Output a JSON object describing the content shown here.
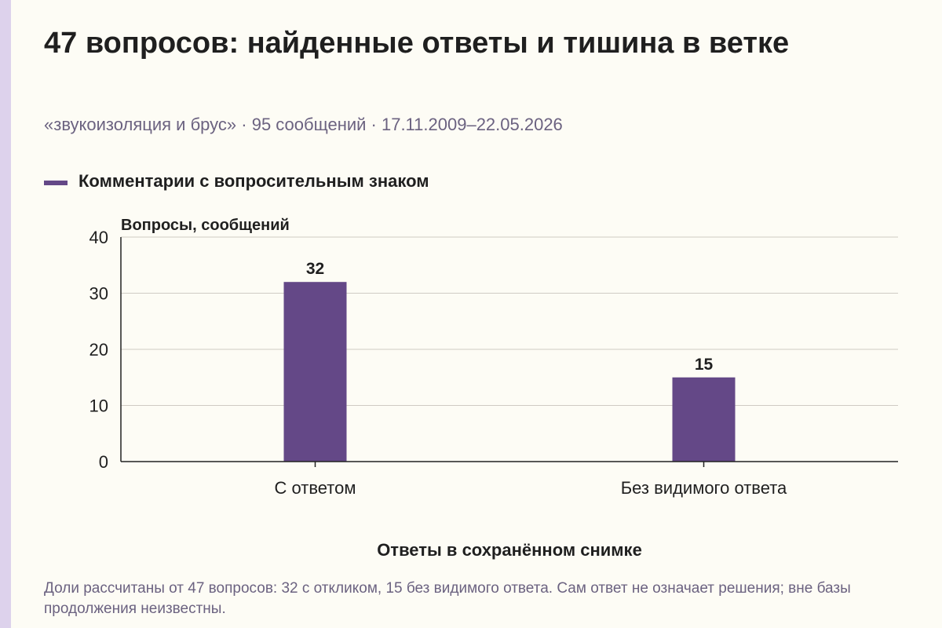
{
  "header": {
    "title": "47 вопросов: найденные ответы и тишина в ветке",
    "subtitle": "«звукоизоляция и брус» · 95 сообщений · 17.11.2009–22.05.2026"
  },
  "legend": {
    "label": "Комментарии с вопросительным знаком",
    "color": "#644887"
  },
  "chart_data": {
    "type": "bar",
    "categories": [
      "С ответом",
      "Без видимого ответа"
    ],
    "series": [
      {
        "name": "Комментарии с вопросительным знаком",
        "values": [
          32,
          15
        ]
      }
    ],
    "ylabel": "Вопросы, сообщений",
    "xlabel": "Ответы в сохранённом снимке",
    "ylim": [
      0,
      40
    ],
    "yticks": [
      0,
      10,
      20,
      30,
      40
    ],
    "grid": true,
    "legend_position": "top-left",
    "bar_color": "#644887"
  },
  "footnote": "Доли рассчитаны от 47 вопросов: 32 с откликом, 15 без видимого ответа. Сам ответ не означает решения; вне базы продолжения неизвестны."
}
